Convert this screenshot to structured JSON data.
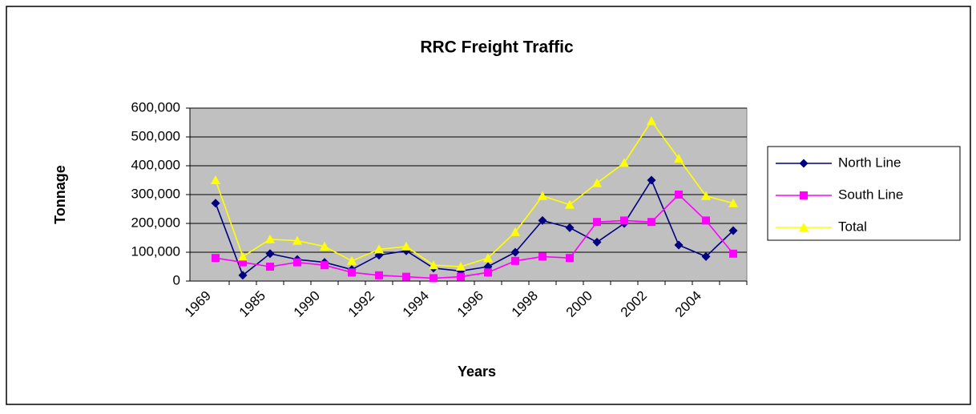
{
  "chart_data": {
    "type": "line",
    "title": "RRC Freight Traffic",
    "x_label": "Years",
    "y_label": "Tonnage",
    "categories": [
      "1969",
      null,
      "1985",
      null,
      "1990",
      null,
      "1992",
      null,
      "1994",
      null,
      "1996",
      null,
      "1998",
      null,
      "2000",
      null,
      "2002",
      null,
      "2004",
      null
    ],
    "series": [
      {
        "name": "North Line",
        "color": "#000080",
        "marker": "diamond",
        "values": [
          270000,
          20000,
          95000,
          75000,
          65000,
          40000,
          90000,
          105000,
          45000,
          35000,
          50000,
          100000,
          210000,
          185000,
          135000,
          200000,
          350000,
          125000,
          85000,
          175000
        ]
      },
      {
        "name": "South Line",
        "color": "#ff00ff",
        "marker": "square",
        "values": [
          80000,
          65000,
          50000,
          65000,
          55000,
          30000,
          20000,
          15000,
          10000,
          15000,
          30000,
          70000,
          85000,
          80000,
          205000,
          210000,
          205000,
          300000,
          210000,
          95000
        ]
      },
      {
        "name": "Total",
        "color": "#ffff00",
        "marker": "triangle",
        "values": [
          350000,
          85000,
          145000,
          140000,
          120000,
          70000,
          110000,
          120000,
          55000,
          50000,
          80000,
          170000,
          295000,
          265000,
          340000,
          410000,
          555000,
          425000,
          295000,
          270000
        ]
      }
    ],
    "ylim": [
      0,
      600000
    ],
    "yticks": [
      0,
      {
        "value": 100000,
        "label": "100,000"
      },
      {
        "value": 200000,
        "label": "200,000"
      },
      {
        "value": 300000,
        "label": "300,000"
      },
      {
        "value": 400000,
        "label": "400,000"
      },
      {
        "value": 500000,
        "label": "500,000"
      },
      {
        "value": 600000,
        "label": "600,000"
      }
    ],
    "grid": true,
    "plot_background": "#c0c0c0",
    "legend": "right"
  }
}
